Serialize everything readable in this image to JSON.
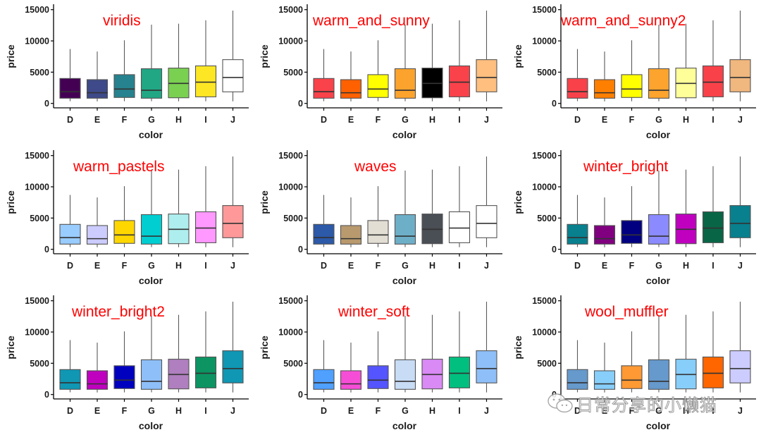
{
  "figure": {
    "description": "3x3 grid of boxplots of diamond price by color, one palette per panel"
  },
  "watermark": {
    "icon": "wechat-icon",
    "text": "日常分享的小懒猫"
  },
  "chart_data": {
    "type": "boxplot",
    "shared": {
      "xlabel": "color",
      "ylabel": "price",
      "categories": [
        "D",
        "E",
        "F",
        "G",
        "H",
        "I",
        "J"
      ],
      "ylim": [
        0,
        15000
      ],
      "yticks": [
        0,
        5000,
        10000,
        15000
      ],
      "ytick_labels": [
        "0",
        "5000",
        "10000",
        "15000"
      ],
      "grid": false,
      "legend": "none",
      "stats": {
        "lower_whisker": [
          357,
          326,
          342,
          354,
          337,
          334,
          335
        ],
        "q1": [
          830,
          830,
          950,
          830,
          900,
          1050,
          1850
        ],
        "median": [
          1880,
          1700,
          2300,
          2100,
          3200,
          3400,
          4150
        ],
        "q3": [
          3990,
          3800,
          4600,
          5550,
          5650,
          6000,
          7000
        ],
        "upper_whisker": [
          8700,
          8300,
          10100,
          12600,
          12750,
          13300,
          14850
        ]
      }
    },
    "panels": [
      {
        "title": "viridis",
        "colors": [
          "#440154",
          "#3E4A89",
          "#26828E",
          "#21A784",
          "#7AD151",
          "#FDE725",
          "#FFFFFF"
        ]
      },
      {
        "title": "warm_and_sunny",
        "colors": [
          "#F9424A",
          "#FF6000",
          "#FFFF00",
          "#FCA32D",
          "#000000",
          "#F9424A",
          "#FFBF7F"
        ]
      },
      {
        "title": "warm_and_sunny2",
        "colors": [
          "#F9414A",
          "#FF7F00",
          "#FFFF00",
          "#FCA42D",
          "#FFFF99",
          "#F9414A",
          "#F0B77E"
        ]
      },
      {
        "title": "warm_pastels",
        "colors": [
          "#99CCFF",
          "#CCCCFF",
          "#FFD700",
          "#00CED1",
          "#AFEEEE",
          "#FF99FF",
          "#FF9999"
        ]
      },
      {
        "title": "waves",
        "colors": [
          "#2C59A8",
          "#B99A6E",
          "#E2DED4",
          "#6EAFC8",
          "#4A4E55",
          "#FFFFFF",
          "#FFFFFF"
        ]
      },
      {
        "title": "winter_bright",
        "colors": [
          "#08808E",
          "#800080",
          "#000080",
          "#8B8BFF",
          "#BF00BF",
          "#086646",
          "#08808E"
        ]
      },
      {
        "title": "winter_bright2",
        "colors": [
          "#0F97B4",
          "#BF00BF",
          "#0000BF",
          "#8FBFF8",
          "#AF7FBF",
          "#0C9563",
          "#0F97B4"
        ]
      },
      {
        "title": "winter_soft",
        "colors": [
          "#4FA0FF",
          "#F64DD6",
          "#5555FF",
          "#C8DCF5",
          "#DA8AF5",
          "#00BF7F",
          "#8FBFF8"
        ]
      },
      {
        "title": "wool_muffler",
        "colors": [
          "#6699CC",
          "#87CEFA",
          "#FF9933",
          "#6699CC",
          "#87CEFA",
          "#FF6600",
          "#CCCCFF"
        ]
      }
    ]
  }
}
